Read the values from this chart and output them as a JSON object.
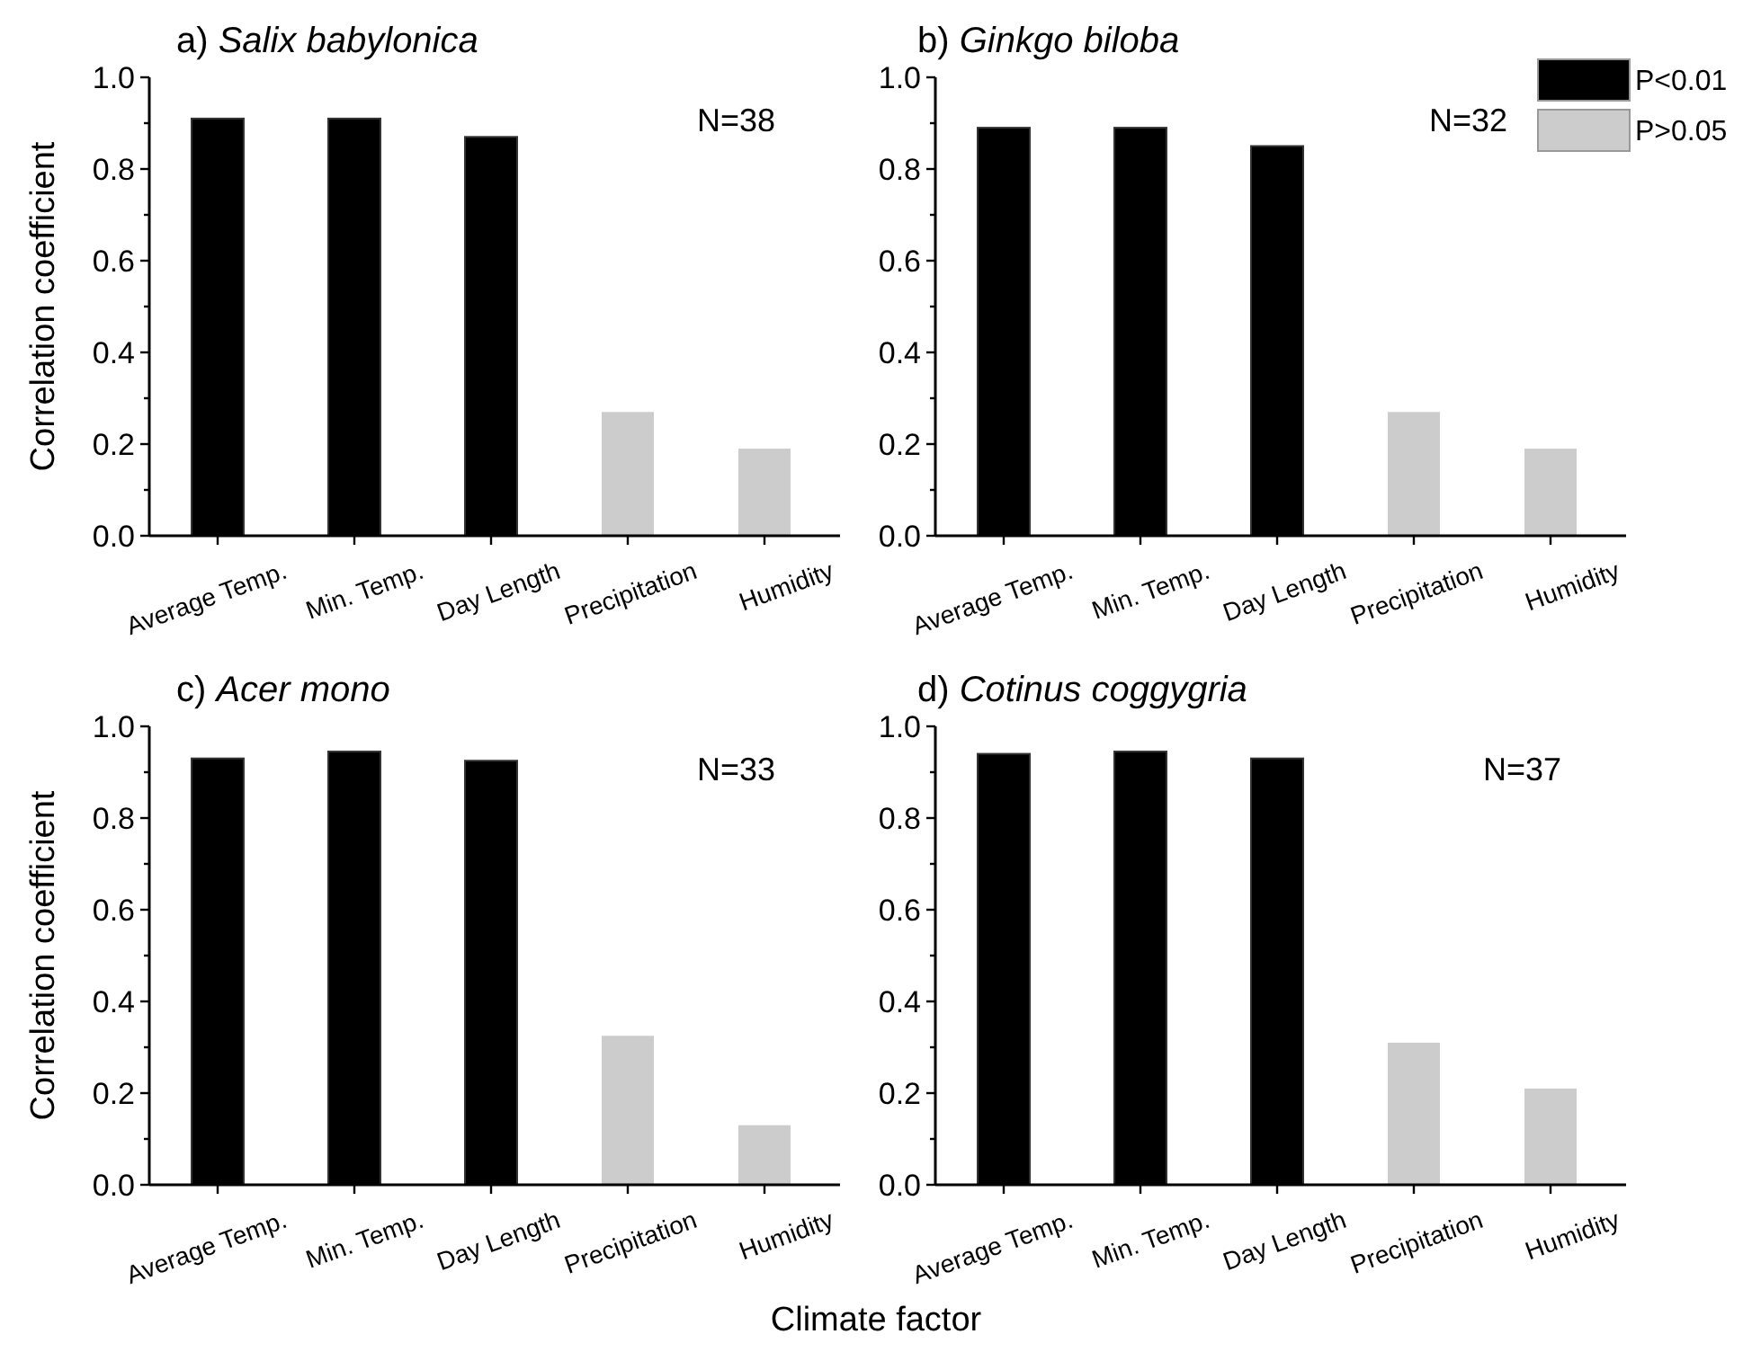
{
  "chart_data": [
    {
      "type": "bar",
      "title": "a) Salix babylonica",
      "ylabel": "Correlation coefficient",
      "categories": [
        "Average Temp.",
        "Min. Temp.",
        "Day Length",
        "Precipitation",
        "Humidity"
      ],
      "series": [
        {
          "color": "#000000",
          "values": [
            0.91,
            0.91,
            0.87,
            null,
            null
          ]
        },
        {
          "color": "#cccccc",
          "values": [
            null,
            null,
            null,
            0.27,
            0.19
          ]
        }
      ],
      "ylim": [
        0,
        1
      ],
      "yticks": [
        {
          "value": 0,
          "label": "0.0"
        },
        {
          "value": 0.1,
          "label": null
        },
        {
          "value": 0.2,
          "label": "0.2"
        },
        {
          "value": 0.3,
          "label": null
        },
        {
          "value": 0.4,
          "label": "0.4"
        },
        {
          "value": 0.5,
          "label": null
        },
        {
          "value": 0.6,
          "label": "0.6"
        },
        {
          "value": 0.7,
          "label": null
        },
        {
          "value": 0.8,
          "label": "0.8"
        },
        {
          "value": 0.9,
          "label": null
        },
        {
          "value": 1,
          "label": "1.0"
        }
      ],
      "annotations": [
        "N=38"
      ]
    },
    {
      "type": "bar",
      "title": "b) Ginkgo biloba",
      "categories": [
        "Average Temp.",
        "Min. Temp.",
        "Day Length",
        "Precipitation",
        "Humidity"
      ],
      "series": [
        {
          "name": "P<0.01",
          "color": "#000000",
          "values": [
            0.89,
            0.89,
            0.85,
            null,
            null
          ]
        },
        {
          "name": "P>0.05",
          "color": "#cccccc",
          "values": [
            null,
            null,
            null,
            0.27,
            0.19
          ]
        }
      ],
      "ylim": [
        0,
        1
      ],
      "yticks": [
        {
          "value": 0,
          "label": "0.0"
        },
        {
          "value": 0.1,
          "label": null
        },
        {
          "value": 0.2,
          "label": "0.2"
        },
        {
          "value": 0.3,
          "label": null
        },
        {
          "value": 0.4,
          "label": "0.4"
        },
        {
          "value": 0.5,
          "label": null
        },
        {
          "value": 0.6,
          "label": "0.6"
        },
        {
          "value": 0.7,
          "label": null
        },
        {
          "value": 0.8,
          "label": "0.8"
        },
        {
          "value": 0.9,
          "label": null
        },
        {
          "value": 1,
          "label": "1.0"
        }
      ],
      "annotations": [
        "N=32"
      ],
      "legend": "top right"
    },
    {
      "type": "bar",
      "title": "c) Acer mono",
      "ylabel": "Correlation coefficient",
      "xlabel": "Climate factor",
      "categories": [
        "Average Temp.",
        "Min. Temp.",
        "Day Length",
        "Precipitation",
        "Humidity"
      ],
      "series": [
        {
          "color": "#000000",
          "values": [
            0.93,
            0.945,
            0.925,
            null,
            null
          ]
        },
        {
          "color": "#cccccc",
          "values": [
            null,
            null,
            null,
            0.325,
            0.13
          ]
        }
      ],
      "ylim": [
        0,
        1
      ],
      "yticks": [
        {
          "value": 0,
          "label": "0.0"
        },
        {
          "value": 0.1,
          "label": null
        },
        {
          "value": 0.2,
          "label": "0.2"
        },
        {
          "value": 0.3,
          "label": null
        },
        {
          "value": 0.4,
          "label": "0.4"
        },
        {
          "value": 0.5,
          "label": null
        },
        {
          "value": 0.6,
          "label": "0.6"
        },
        {
          "value": 0.7,
          "label": null
        },
        {
          "value": 0.8,
          "label": "0.8"
        },
        {
          "value": 0.9,
          "label": null
        },
        {
          "value": 1,
          "label": "1.0"
        }
      ],
      "annotations": [
        "N=33"
      ]
    },
    {
      "type": "bar",
      "title": "d) Cotinus coggygria",
      "categories": [
        "Average Temp.",
        "Min. Temp.",
        "Day Length",
        "Precipitation",
        "Humidity"
      ],
      "series": [
        {
          "color": "#000000",
          "values": [
            0.94,
            0.945,
            0.93,
            null,
            null
          ]
        },
        {
          "color": "#cccccc",
          "values": [
            null,
            null,
            null,
            0.31,
            0.21
          ]
        }
      ],
      "ylim": [
        0,
        1
      ],
      "yticks": [
        {
          "value": 0,
          "label": "0.0"
        },
        {
          "value": 0.1,
          "label": null
        },
        {
          "value": 0.2,
          "label": "0.2"
        },
        {
          "value": 0.3,
          "label": null
        },
        {
          "value": 0.4,
          "label": "0.4"
        },
        {
          "value": 0.5,
          "label": null
        },
        {
          "value": 0.6,
          "label": "0.6"
        },
        {
          "value": 0.7,
          "label": null
        },
        {
          "value": 0.8,
          "label": "0.8"
        },
        {
          "value": 0.9,
          "label": null
        },
        {
          "value": 1,
          "label": "1.0"
        }
      ],
      "annotations": [
        "N=37"
      ]
    }
  ]
}
